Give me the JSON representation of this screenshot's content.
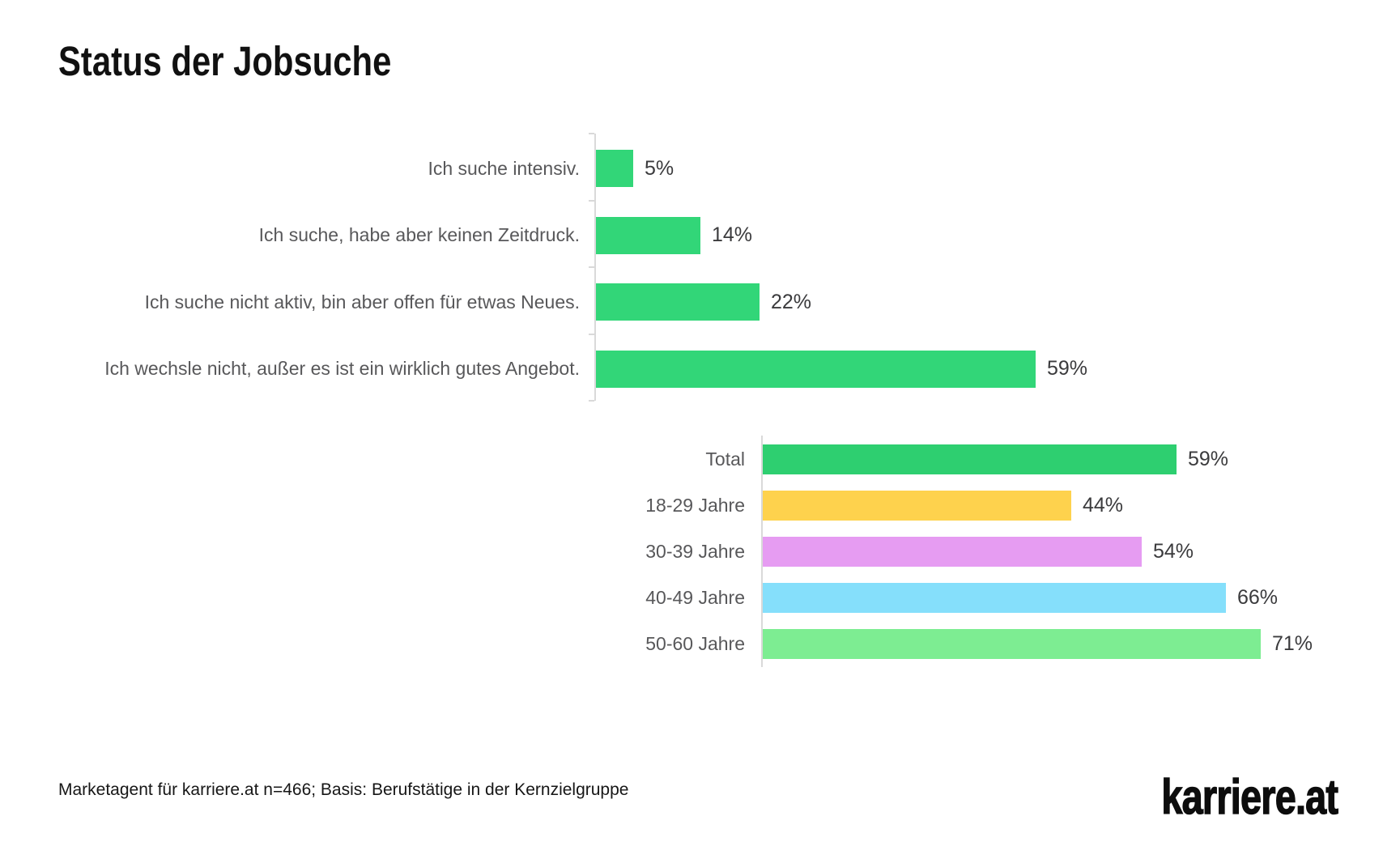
{
  "page": {
    "title": "Status der Jobsuche",
    "source_note": "Marketagent für karriere.at n=466; Basis: Berufstätige in der Kernzielgruppe",
    "brand_logo": "karriere.at"
  },
  "colors": {
    "status_bar_green": "#32d678",
    "total_bar_green": "#2ecf70",
    "age_18_29_yellow": "#fed24d",
    "age_30_39_purple": "#e69cf2",
    "age_40_49_blue": "#85dffb",
    "age_50_60_lightgreen": "#7ded92",
    "axis_line": "#d9d9d9",
    "category_label": "#58585a",
    "value_label": "#3b3b3d"
  },
  "chart_data": [
    {
      "type": "bar",
      "orientation": "horizontal",
      "title": "",
      "categories": [
        "Ich suche intensiv.",
        "Ich suche, habe aber keinen Zeitdruck.",
        "Ich suche nicht aktiv, bin aber offen für etwas Neues.",
        "Ich wechsle nicht, außer es ist ein wirklich gutes Angebot."
      ],
      "values": [
        5,
        14,
        22,
        59
      ],
      "value_labels": [
        "5%",
        "14%",
        "22%",
        "59%"
      ],
      "unit": "%",
      "xlim": [
        0,
        100
      ],
      "grid": false,
      "bar_colors": [
        "#32d678",
        "#32d678",
        "#32d678",
        "#32d678"
      ]
    },
    {
      "type": "bar",
      "orientation": "horizontal",
      "title": "",
      "categories": [
        "Total",
        "18-29 Jahre",
        "30-39 Jahre",
        "40-49 Jahre",
        "50-60 Jahre"
      ],
      "values": [
        59,
        44,
        54,
        66,
        71
      ],
      "value_labels": [
        "59%",
        "44%",
        "54%",
        "66%",
        "71%"
      ],
      "unit": "%",
      "xlim": [
        0,
        100
      ],
      "grid": false,
      "bar_colors": [
        "#2ecf70",
        "#fed24d",
        "#e69cf2",
        "#85dffb",
        "#7ded92"
      ]
    }
  ]
}
